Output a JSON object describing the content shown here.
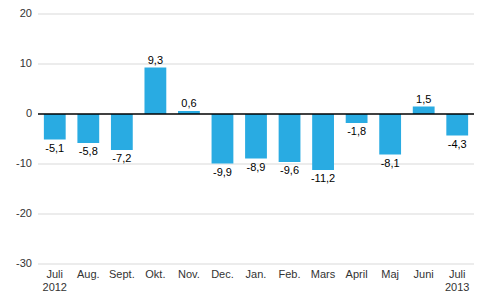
{
  "chart_data": {
    "type": "bar",
    "categories": [
      "Juli\n2012",
      "Aug.",
      "Sept.",
      "Okt.",
      "Nov.",
      "Dec.",
      "Jan.",
      "Feb.",
      "Mars",
      "April",
      "Maj",
      "Juni",
      "Juli\n2013"
    ],
    "values": [
      -5.1,
      -5.8,
      -7.2,
      9.3,
      0.6,
      -9.9,
      -8.9,
      -9.6,
      -11.2,
      -1.8,
      -8.1,
      1.5,
      -4.3
    ],
    "value_labels": [
      "-5,1",
      "-5,8",
      "-7,2",
      "9,3",
      "0,6",
      "-9,9",
      "-8,9",
      "-9,6",
      "-11,2",
      "-1,8",
      "-8,1",
      "1,5",
      "-4,3"
    ],
    "data_labels": true,
    "color": "#29abe2",
    "ylim": [
      -30,
      20
    ],
    "yticks": [
      -30,
      -20,
      -10,
      0,
      10,
      20
    ],
    "grid": true
  }
}
